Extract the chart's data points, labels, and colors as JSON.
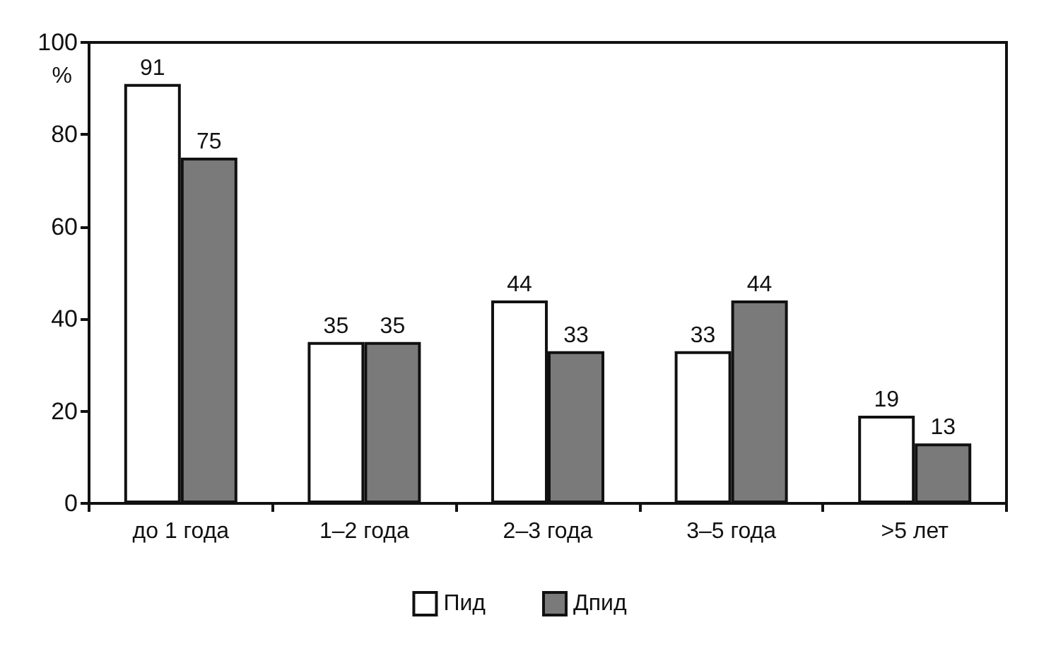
{
  "chart_data": {
    "type": "bar",
    "ylabel": "%",
    "categories": [
      "до 1 года",
      "1–2 года",
      "2–3 года",
      "3–5 года",
      ">5 лет"
    ],
    "series": [
      {
        "name": "Пид",
        "color": "#ffffff",
        "values": [
          91,
          35,
          44,
          33,
          19
        ]
      },
      {
        "name": "Дпид",
        "color": "#7a7a7a",
        "values": [
          75,
          35,
          33,
          44,
          13
        ]
      }
    ],
    "ylim": [
      0,
      100
    ],
    "yticks": [
      0,
      20,
      40,
      60,
      80,
      100
    ],
    "grid": false,
    "legend": "bottom",
    "data_labels": true
  }
}
